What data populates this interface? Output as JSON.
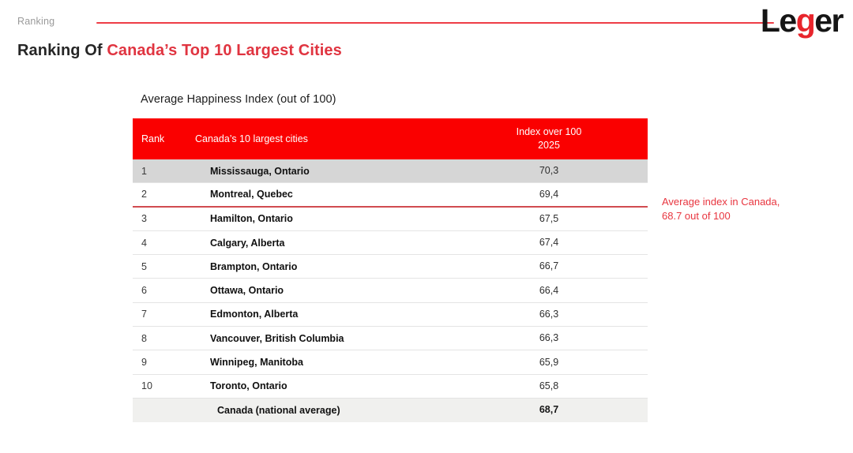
{
  "header": {
    "eyebrow": "Ranking",
    "title_prefix": "Ranking Of ",
    "title_highlight": "Canada’s Top 10 Largest Cities",
    "logo": {
      "le": "Le",
      "g": "g",
      "er": "er"
    }
  },
  "table": {
    "caption": "Average Happiness Index (out of 100)",
    "columns": {
      "rank": "Rank",
      "city": "Canada’s 10 largest cities",
      "index_line1": "Index over 100",
      "index_line2": "2025"
    },
    "rows": [
      {
        "rank": "1",
        "city": "Mississauga, Ontario",
        "value": "70,3"
      },
      {
        "rank": "2",
        "city": "Montreal, Quebec",
        "value": "69,4"
      },
      {
        "rank": "3",
        "city": "Hamilton, Ontario",
        "value": "67,5"
      },
      {
        "rank": "4",
        "city": "Calgary, Alberta",
        "value": "67,4"
      },
      {
        "rank": "5",
        "city": "Brampton, Ontario",
        "value": "66,7"
      },
      {
        "rank": "6",
        "city": "Ottawa, Ontario",
        "value": "66,4"
      },
      {
        "rank": "7",
        "city": "Edmonton, Alberta",
        "value": "66,3"
      },
      {
        "rank": "8",
        "city": "Vancouver, British Columbia",
        "value": "66,3"
      },
      {
        "rank": "9",
        "city": "Winnipeg, Manitoba",
        "value": "65,9"
      },
      {
        "rank": "10",
        "city": "Toronto, Ontario",
        "value": "65,8"
      }
    ],
    "footer": {
      "rank": "",
      "city": "Canada (national average)",
      "value": "68,7"
    }
  },
  "annotation": {
    "line1": "Average index in Canada,",
    "line2": "68.7 out of 100"
  },
  "colors": {
    "header_red": "#fa0000",
    "brand_red": "#e8252c",
    "title_red": "#e03440",
    "divider_red": "#d14b50",
    "topline_red": "#ee3d46",
    "highlight_row_bg": "#d6d6d6",
    "footer_row_bg": "#f0f0ee"
  }
}
